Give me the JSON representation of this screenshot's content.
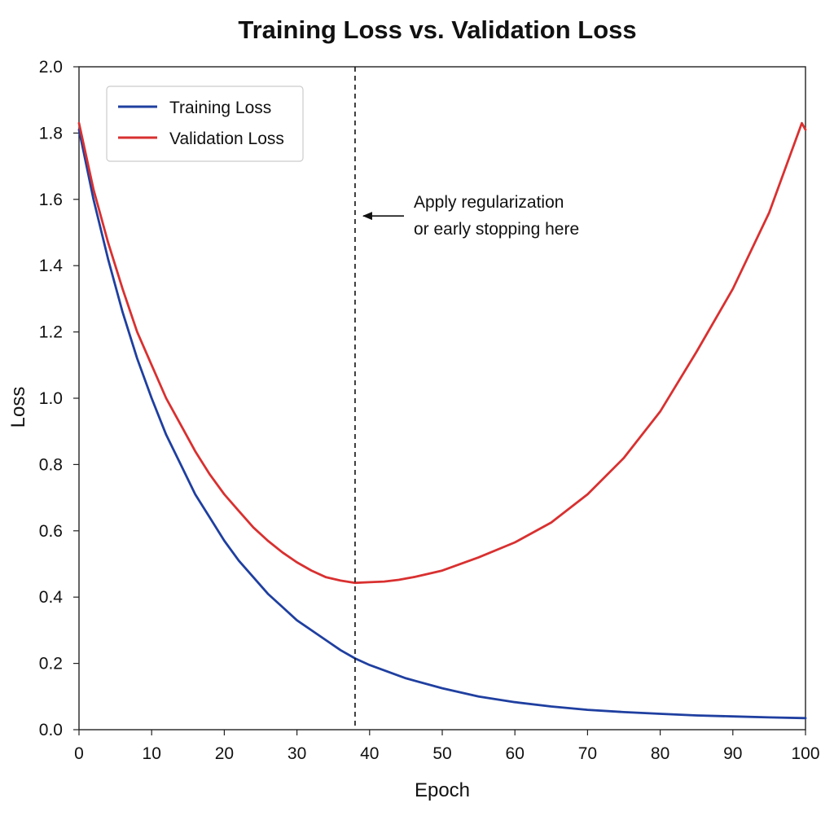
{
  "chart_data": {
    "type": "line",
    "title": "Training Loss vs. Validation Loss",
    "xlabel": "Epoch",
    "ylabel": "Loss",
    "xlim": [
      0,
      100
    ],
    "ylim": [
      0,
      2.0
    ],
    "x_ticks": [
      0,
      10,
      20,
      30,
      40,
      50,
      60,
      70,
      80,
      90,
      100
    ],
    "y_ticks": [
      "0.0",
      "0.2",
      "0.4",
      "0.6",
      "0.8",
      "1.0",
      "1.2",
      "1.4",
      "1.6",
      "1.8",
      "2.0"
    ],
    "grid": false,
    "legend_position": "top-left",
    "series": [
      {
        "name": "Training Loss",
        "color": "#1f3fa0",
        "x": [
          0,
          2,
          4,
          6,
          8,
          10,
          12,
          14,
          16,
          18,
          20,
          22,
          24,
          26,
          28,
          30,
          32,
          34,
          36,
          38,
          40,
          45,
          50,
          55,
          60,
          65,
          70,
          75,
          80,
          85,
          90,
          95,
          100
        ],
        "y": [
          1.81,
          1.6,
          1.42,
          1.26,
          1.12,
          1.0,
          0.89,
          0.8,
          0.71,
          0.64,
          0.57,
          0.51,
          0.46,
          0.41,
          0.37,
          0.33,
          0.3,
          0.27,
          0.24,
          0.215,
          0.195,
          0.155,
          0.125,
          0.1,
          0.083,
          0.07,
          0.06,
          0.053,
          0.048,
          0.043,
          0.04,
          0.037,
          0.035
        ]
      },
      {
        "name": "Validation Loss",
        "color": "#d93030",
        "x": [
          0,
          2,
          4,
          6,
          8,
          10,
          12,
          14,
          16,
          18,
          20,
          22,
          24,
          26,
          28,
          30,
          32,
          34,
          36,
          38,
          40,
          42,
          44,
          46,
          48,
          50,
          55,
          60,
          65,
          70,
          75,
          80,
          85,
          90,
          95,
          99.5,
          100
        ],
        "y": [
          1.83,
          1.63,
          1.47,
          1.33,
          1.2,
          1.1,
          1.0,
          0.92,
          0.84,
          0.77,
          0.71,
          0.66,
          0.61,
          0.57,
          0.535,
          0.505,
          0.48,
          0.46,
          0.45,
          0.443,
          0.445,
          0.447,
          0.452,
          0.46,
          0.47,
          0.48,
          0.52,
          0.565,
          0.625,
          0.71,
          0.82,
          0.96,
          1.14,
          1.33,
          1.56,
          1.83,
          1.81
        ]
      }
    ],
    "vline": {
      "x": 38,
      "style": "dashed",
      "color": "#111111"
    },
    "annotation": {
      "lines": [
        "Apply regularization",
        "or early stopping here"
      ],
      "arrow_target": {
        "x": 38,
        "y": 1.55
      }
    }
  }
}
